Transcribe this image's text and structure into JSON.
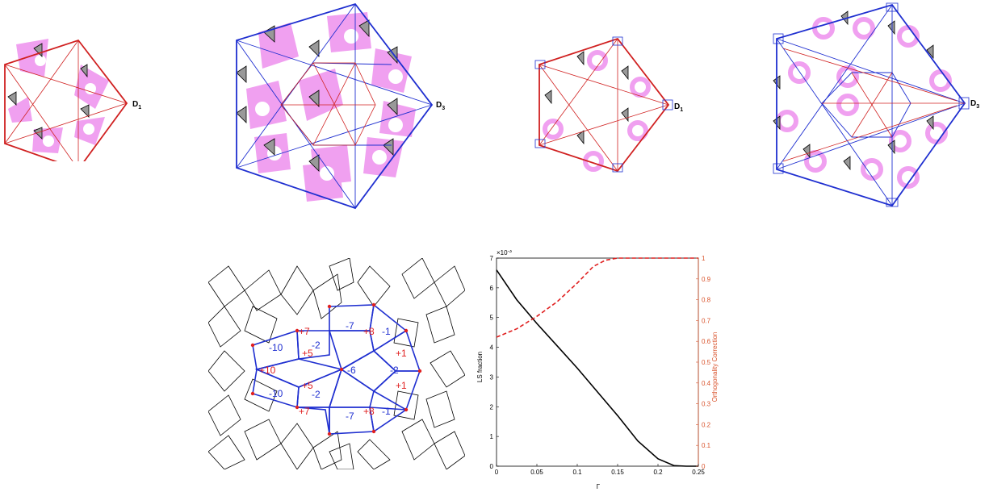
{
  "panels": {
    "p1": {
      "label": "D",
      "sub": "1"
    },
    "p2": {
      "label": "D",
      "sub": "3"
    },
    "p3": {
      "label": "D",
      "sub": "1"
    },
    "p4": {
      "label": "D",
      "sub": "3"
    }
  },
  "tiling": {
    "labels": [
      {
        "text": "-7",
        "color": "blue"
      },
      {
        "text": "+8",
        "color": "red"
      },
      {
        "text": "-1",
        "color": "blue"
      },
      {
        "text": "+7",
        "color": "red"
      },
      {
        "text": "-10",
        "color": "blue"
      },
      {
        "text": "-2",
        "color": "blue"
      },
      {
        "text": "+5",
        "color": "red"
      },
      {
        "text": "+1",
        "color": "red"
      },
      {
        "text": "+10",
        "color": "red"
      },
      {
        "text": "-6",
        "color": "blue"
      },
      {
        "text": "-2",
        "color": "blue"
      },
      {
        "text": "+1",
        "color": "red"
      },
      {
        "text": "-10",
        "color": "blue"
      },
      {
        "text": "+5",
        "color": "red"
      },
      {
        "text": "-2",
        "color": "blue"
      },
      {
        "text": "+7",
        "color": "red"
      },
      {
        "text": "-7",
        "color": "blue"
      },
      {
        "text": "+8",
        "color": "red"
      },
      {
        "text": "-1",
        "color": "blue"
      }
    ]
  },
  "colors": {
    "blue": "#1f2fd0",
    "red": "#e02020",
    "magenta": "#f0a0f0",
    "orange": "#d9532c"
  },
  "chart_data": {
    "type": "line",
    "xlabel": "Γ",
    "ylabel": "LS fraction",
    "y2label": "Orthogonality Correction",
    "exponent_label": "×10",
    "exponent_sup": "-3",
    "xlim": [
      0,
      0.25
    ],
    "ylim": [
      0,
      7
    ],
    "y2lim": [
      0,
      1
    ],
    "xticks": [
      "0",
      "0.05",
      "0.1",
      "0.15",
      "0.2",
      "0.25"
    ],
    "yticks": [
      "0",
      "1",
      "2",
      "3",
      "4",
      "5",
      "6",
      "7"
    ],
    "y2ticks": [
      "0",
      "0.1",
      "0.2",
      "0.3",
      "0.4",
      "0.5",
      "0.6",
      "0.7",
      "0.8",
      "0.9",
      "1"
    ],
    "series": [
      {
        "axis": "left",
        "color": "#000000",
        "style": "solid",
        "x": [
          0,
          0.025,
          0.05,
          0.075,
          0.1,
          0.125,
          0.15,
          0.175,
          0.2,
          0.22,
          0.235,
          0.25
        ],
        "y": [
          6.6,
          5.6,
          4.8,
          4.05,
          3.3,
          2.5,
          1.7,
          0.85,
          0.25,
          0.02,
          0,
          0
        ]
      },
      {
        "axis": "right",
        "color": "#e02020",
        "style": "dashed",
        "x": [
          0,
          0.025,
          0.05,
          0.075,
          0.1,
          0.12,
          0.135,
          0.15,
          0.2,
          0.25
        ],
        "y": [
          0.62,
          0.66,
          0.72,
          0.79,
          0.88,
          0.96,
          0.99,
          1.0,
          1.0,
          1.0
        ]
      }
    ]
  }
}
